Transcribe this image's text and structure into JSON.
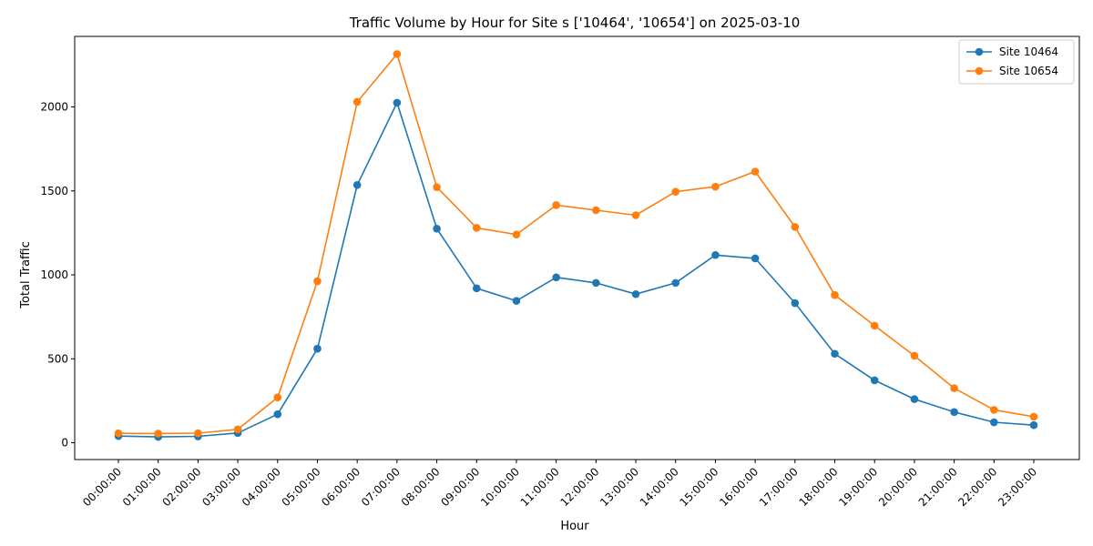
{
  "chart_data": {
    "type": "line",
    "title": "Traffic Volume by Hour for Site s ['10464', '10654'] on 2025-03-10",
    "xlabel": "Hour",
    "ylabel": "Total Traffic",
    "categories": [
      "00:00:00",
      "01:00:00",
      "02:00:00",
      "03:00:00",
      "04:00:00",
      "05:00:00",
      "06:00:00",
      "07:00:00",
      "08:00:00",
      "09:00:00",
      "10:00:00",
      "11:00:00",
      "12:00:00",
      "13:00:00",
      "14:00:00",
      "15:00:00",
      "16:00:00",
      "17:00:00",
      "18:00:00",
      "19:00:00",
      "20:00:00",
      "21:00:00",
      "22:00:00",
      "23:00:00"
    ],
    "ylim": [
      -100,
      2420
    ],
    "yticks": [
      0,
      500,
      1000,
      1500,
      2000
    ],
    "grid": false,
    "legend": "top-right",
    "series": [
      {
        "name": "Site 10464",
        "color": "#1f77b4",
        "marker": "circle",
        "values": [
          40,
          35,
          38,
          58,
          170,
          560,
          1535,
          2025,
          1275,
          920,
          845,
          985,
          952,
          885,
          952,
          1118,
          1098,
          832,
          530,
          372,
          260,
          183,
          122,
          105
        ]
      },
      {
        "name": "Site 10654",
        "color": "#ff7f0e",
        "marker": "circle",
        "values": [
          56,
          55,
          57,
          80,
          270,
          962,
          2030,
          2315,
          1522,
          1280,
          1240,
          1415,
          1385,
          1355,
          1495,
          1525,
          1615,
          1285,
          880,
          697,
          518,
          325,
          196,
          155
        ]
      }
    ]
  }
}
